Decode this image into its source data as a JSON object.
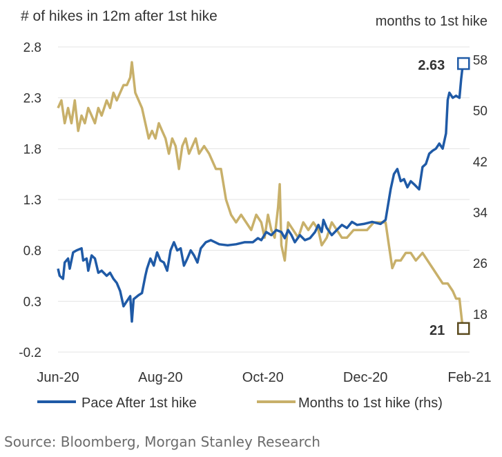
{
  "chart_data": {
    "type": "line",
    "y_label_left": "# of hikes in 12m after 1st hike",
    "y_label_right": "months to 1st hike",
    "x_ticks": [
      "Jun-20",
      "Aug-20",
      "Oct-20",
      "Dec-20",
      "Feb-21"
    ],
    "y_left_ticks": [
      "2.8",
      "2.3",
      "1.8",
      "1.3",
      "0.8",
      "0.3",
      "-0.2"
    ],
    "y_right_ticks": [
      "58",
      "50",
      "42",
      "34",
      "26",
      "18"
    ],
    "ylim_left": [
      -0.2,
      2.8
    ],
    "ylim_right": [
      18,
      58
    ],
    "grid": true,
    "legend_position": "bottom",
    "x_start": "2020-06-01",
    "x_end": "2021-02-01",
    "series": [
      {
        "name": "Pace After 1st hike",
        "axis": "left",
        "color": "#1f5aa6",
        "points": [
          [
            "2020-06-01",
            0.62
          ],
          [
            "2020-06-02",
            0.55
          ],
          [
            "2020-06-04",
            0.52
          ],
          [
            "2020-06-05",
            0.68
          ],
          [
            "2020-06-07",
            0.72
          ],
          [
            "2020-06-08",
            0.62
          ],
          [
            "2020-06-10",
            0.78
          ],
          [
            "2020-06-12",
            0.8
          ],
          [
            "2020-06-15",
            0.82
          ],
          [
            "2020-06-16",
            0.7
          ],
          [
            "2020-06-18",
            0.72
          ],
          [
            "2020-06-19",
            0.6
          ],
          [
            "2020-06-21",
            0.75
          ],
          [
            "2020-06-23",
            0.72
          ],
          [
            "2020-06-25",
            0.58
          ],
          [
            "2020-06-27",
            0.6
          ],
          [
            "2020-06-30",
            0.55
          ],
          [
            "2020-07-02",
            0.58
          ],
          [
            "2020-07-04",
            0.52
          ],
          [
            "2020-07-06",
            0.48
          ],
          [
            "2020-07-08",
            0.4
          ],
          [
            "2020-07-10",
            0.25
          ],
          [
            "2020-07-12",
            0.3
          ],
          [
            "2020-07-14",
            0.35
          ],
          [
            "2020-07-15",
            0.1
          ],
          [
            "2020-07-16",
            0.32
          ],
          [
            "2020-07-19",
            0.36
          ],
          [
            "2020-07-21",
            0.38
          ],
          [
            "2020-07-23",
            0.55
          ],
          [
            "2020-07-24",
            0.62
          ],
          [
            "2020-07-26",
            0.72
          ],
          [
            "2020-07-28",
            0.65
          ],
          [
            "2020-07-30",
            0.78
          ],
          [
            "2020-08-01",
            0.7
          ],
          [
            "2020-08-03",
            0.68
          ],
          [
            "2020-08-05",
            0.6
          ],
          [
            "2020-08-07",
            0.8
          ],
          [
            "2020-08-09",
            0.88
          ],
          [
            "2020-08-11",
            0.8
          ],
          [
            "2020-08-13",
            0.82
          ],
          [
            "2020-08-15",
            0.65
          ],
          [
            "2020-08-17",
            0.72
          ],
          [
            "2020-08-19",
            0.8
          ],
          [
            "2020-08-21",
            0.75
          ],
          [
            "2020-08-23",
            0.68
          ],
          [
            "2020-08-25",
            0.82
          ],
          [
            "2020-08-28",
            0.88
          ],
          [
            "2020-08-31",
            0.9
          ],
          [
            "2020-09-05",
            0.86
          ],
          [
            "2020-09-10",
            0.85
          ],
          [
            "2020-09-15",
            0.86
          ],
          [
            "2020-09-20",
            0.88
          ],
          [
            "2020-09-25",
            0.88
          ],
          [
            "2020-09-28",
            0.92
          ],
          [
            "2020-09-30",
            0.9
          ],
          [
            "2020-10-03",
            0.98
          ],
          [
            "2020-10-06",
            0.95
          ],
          [
            "2020-10-09",
            1.0
          ],
          [
            "2020-10-12",
            0.98
          ],
          [
            "2020-10-14",
            0.92
          ],
          [
            "2020-10-16",
            1.0
          ],
          [
            "2020-10-18",
            0.95
          ],
          [
            "2020-10-20",
            0.88
          ],
          [
            "2020-10-23",
            0.95
          ],
          [
            "2020-10-26",
            0.9
          ],
          [
            "2020-10-29",
            0.92
          ],
          [
            "2020-11-01",
            0.98
          ],
          [
            "2020-11-03",
            1.05
          ],
          [
            "2020-11-05",
            0.98
          ],
          [
            "2020-11-06",
            1.1
          ],
          [
            "2020-11-08",
            1.02
          ],
          [
            "2020-11-11",
            0.95
          ],
          [
            "2020-11-14",
            1.0
          ],
          [
            "2020-11-17",
            1.05
          ],
          [
            "2020-11-20",
            1.02
          ],
          [
            "2020-11-23",
            1.08
          ],
          [
            "2020-11-26",
            1.05
          ],
          [
            "2020-11-30",
            1.06
          ],
          [
            "2020-12-05",
            1.08
          ],
          [
            "2020-12-10",
            1.06
          ],
          [
            "2020-12-13",
            1.1
          ],
          [
            "2020-12-16",
            1.4
          ],
          [
            "2020-12-18",
            1.55
          ],
          [
            "2020-12-20",
            1.6
          ],
          [
            "2020-12-22",
            1.48
          ],
          [
            "2020-12-24",
            1.5
          ],
          [
            "2020-12-26",
            1.42
          ],
          [
            "2020-12-28",
            1.48
          ],
          [
            "2020-12-30",
            1.45
          ],
          [
            "2021-01-02",
            1.4
          ],
          [
            "2021-01-04",
            1.62
          ],
          [
            "2021-01-06",
            1.65
          ],
          [
            "2021-01-08",
            1.75
          ],
          [
            "2021-01-10",
            1.78
          ],
          [
            "2021-01-12",
            1.8
          ],
          [
            "2021-01-14",
            1.85
          ],
          [
            "2021-01-16",
            1.8
          ],
          [
            "2021-01-18",
            1.95
          ],
          [
            "2021-01-19",
            2.28
          ],
          [
            "2021-01-20",
            2.35
          ],
          [
            "2021-01-22",
            2.3
          ],
          [
            "2021-01-24",
            2.32
          ],
          [
            "2021-01-26",
            2.3
          ],
          [
            "2021-01-27",
            2.48
          ],
          [
            "2021-01-28",
            2.63
          ]
        ],
        "end_label": "2.63"
      },
      {
        "name": "Months to 1st hike (rhs)",
        "axis": "right",
        "color": "#c8b06a",
        "points": [
          [
            "2020-06-01",
            50
          ],
          [
            "2020-06-03",
            51
          ],
          [
            "2020-06-05",
            48
          ],
          [
            "2020-06-07",
            50
          ],
          [
            "2020-06-09",
            48
          ],
          [
            "2020-06-11",
            51
          ],
          [
            "2020-06-13",
            47
          ],
          [
            "2020-06-15",
            49
          ],
          [
            "2020-06-17",
            48
          ],
          [
            "2020-06-19",
            50
          ],
          [
            "2020-06-21",
            49
          ],
          [
            "2020-06-23",
            48
          ],
          [
            "2020-06-25",
            50
          ],
          [
            "2020-06-27",
            49
          ],
          [
            "2020-06-30",
            51
          ],
          [
            "2020-07-02",
            50
          ],
          [
            "2020-07-04",
            52
          ],
          [
            "2020-07-06",
            51
          ],
          [
            "2020-07-08",
            52
          ],
          [
            "2020-07-10",
            53
          ],
          [
            "2020-07-12",
            53
          ],
          [
            "2020-07-14",
            54
          ],
          [
            "2020-07-15",
            56
          ],
          [
            "2020-07-17",
            52
          ],
          [
            "2020-07-19",
            51
          ],
          [
            "2020-07-21",
            50
          ],
          [
            "2020-07-23",
            48
          ],
          [
            "2020-07-25",
            46
          ],
          [
            "2020-07-27",
            47
          ],
          [
            "2020-07-29",
            46
          ],
          [
            "2020-07-31",
            48
          ],
          [
            "2020-08-02",
            47
          ],
          [
            "2020-08-04",
            46
          ],
          [
            "2020-08-06",
            44
          ],
          [
            "2020-08-08",
            46
          ],
          [
            "2020-08-10",
            45
          ],
          [
            "2020-08-12",
            42
          ],
          [
            "2020-08-14",
            45
          ],
          [
            "2020-08-16",
            46
          ],
          [
            "2020-08-18",
            44
          ],
          [
            "2020-08-20",
            45
          ],
          [
            "2020-08-22",
            46
          ],
          [
            "2020-08-24",
            44
          ],
          [
            "2020-08-27",
            45
          ],
          [
            "2020-08-30",
            44
          ],
          [
            "2020-09-03",
            42
          ],
          [
            "2020-09-06",
            42
          ],
          [
            "2020-09-09",
            38
          ],
          [
            "2020-09-12",
            36
          ],
          [
            "2020-09-15",
            35
          ],
          [
            "2020-09-18",
            36
          ],
          [
            "2020-09-21",
            35
          ],
          [
            "2020-09-24",
            34
          ],
          [
            "2020-09-27",
            36
          ],
          [
            "2020-09-30",
            35
          ],
          [
            "2020-10-02",
            33
          ],
          [
            "2020-10-04",
            36
          ],
          [
            "2020-10-06",
            34
          ],
          [
            "2020-10-08",
            33
          ],
          [
            "2020-10-10",
            37
          ],
          [
            "2020-10-11",
            40
          ],
          [
            "2020-10-12",
            32
          ],
          [
            "2020-10-14",
            30
          ],
          [
            "2020-10-16",
            35
          ],
          [
            "2020-10-19",
            34
          ],
          [
            "2020-10-22",
            33
          ],
          [
            "2020-10-25",
            35
          ],
          [
            "2020-10-28",
            34
          ],
          [
            "2020-10-31",
            35
          ],
          [
            "2020-11-03",
            34
          ],
          [
            "2020-11-05",
            32
          ],
          [
            "2020-11-08",
            33
          ],
          [
            "2020-11-11",
            35
          ],
          [
            "2020-11-14",
            34
          ],
          [
            "2020-11-17",
            33
          ],
          [
            "2020-11-20",
            33
          ],
          [
            "2020-11-24",
            34
          ],
          [
            "2020-11-28",
            34
          ],
          [
            "2020-12-02",
            34
          ],
          [
            "2020-12-06",
            35
          ],
          [
            "2020-12-10",
            35
          ],
          [
            "2020-12-13",
            35
          ],
          [
            "2020-12-15",
            32
          ],
          [
            "2020-12-17",
            29
          ],
          [
            "2020-12-19",
            30
          ],
          [
            "2020-12-22",
            30
          ],
          [
            "2020-12-25",
            31
          ],
          [
            "2020-12-28",
            31
          ],
          [
            "2020-12-31",
            30
          ],
          [
            "2021-01-04",
            31
          ],
          [
            "2021-01-07",
            30
          ],
          [
            "2021-01-10",
            29
          ],
          [
            "2021-01-13",
            28
          ],
          [
            "2021-01-16",
            27
          ],
          [
            "2021-01-19",
            27
          ],
          [
            "2021-01-22",
            26
          ],
          [
            "2021-01-24",
            25
          ],
          [
            "2021-01-26",
            25
          ],
          [
            "2021-01-28",
            21
          ]
        ],
        "end_label": "21"
      }
    ]
  },
  "source": "Source: Bloomberg, Morgan Stanley Research"
}
